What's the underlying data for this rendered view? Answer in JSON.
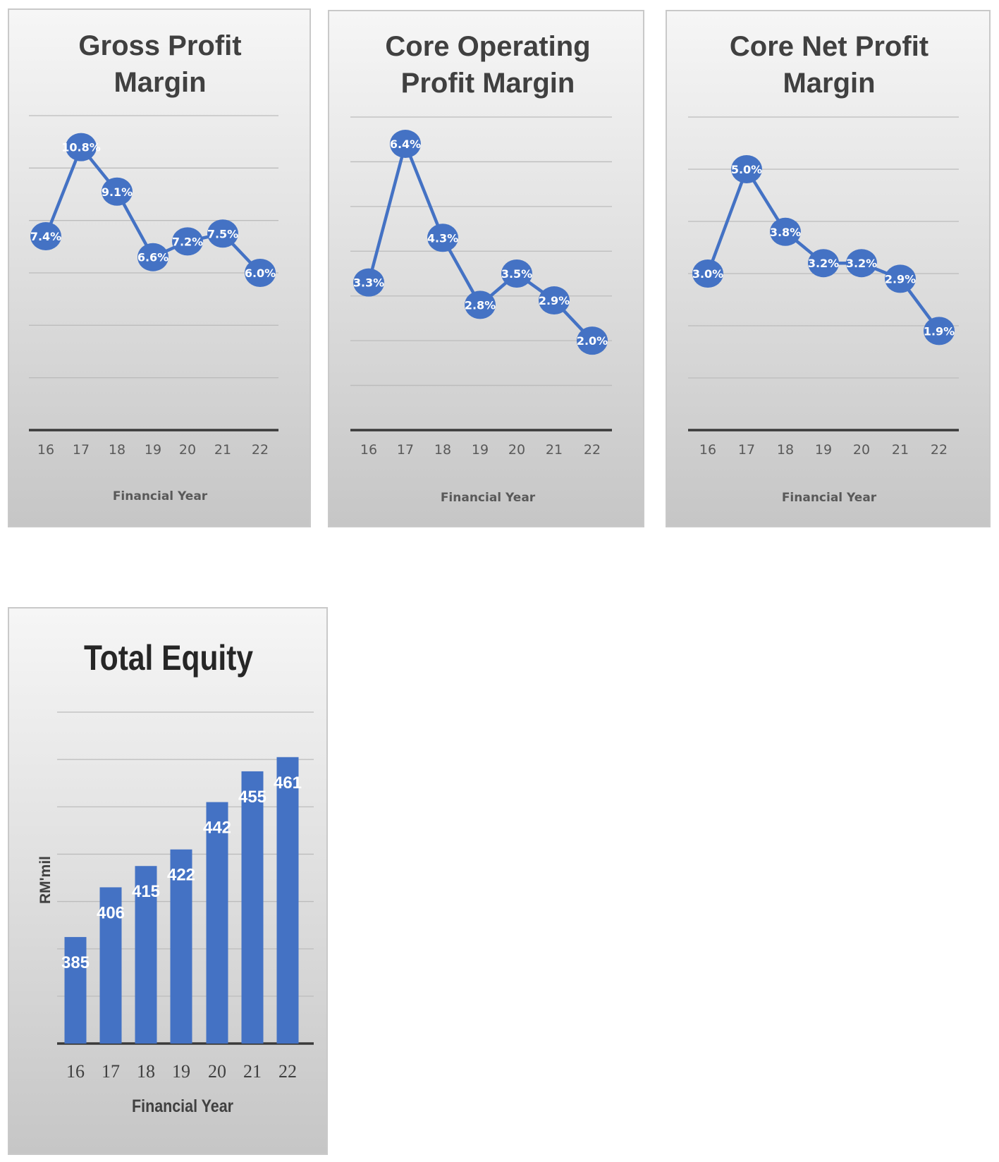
{
  "chart_data": [
    {
      "type": "line",
      "title_lines": [
        "Gross Profit",
        "Margin"
      ],
      "xlabel": "Financial Year",
      "categories": [
        "16",
        "17",
        "18",
        "19",
        "20",
        "21",
        "22"
      ],
      "values": [
        7.4,
        10.8,
        9.1,
        6.6,
        7.2,
        7.5,
        6.0
      ],
      "labels": [
        "7.4%",
        "10.8%",
        "9.1%",
        "6.6%",
        "7.2%",
        "7.5%",
        "6.0%"
      ],
      "ylim": [
        0,
        12
      ],
      "color": "#4472c4",
      "grid": true
    },
    {
      "type": "line",
      "title_lines": [
        "Core Operating",
        "Profit Margin"
      ],
      "xlabel": "Financial Year",
      "categories": [
        "16",
        "17",
        "18",
        "19",
        "20",
        "21",
        "22"
      ],
      "values": [
        3.3,
        6.4,
        4.3,
        2.8,
        3.5,
        2.9,
        2.0
      ],
      "labels": [
        "3.3%",
        "6.4%",
        "4.3%",
        "2.8%",
        "3.5%",
        "2.9%",
        "2.0%"
      ],
      "ylim": [
        0,
        7
      ],
      "color": "#4472c4",
      "grid": true
    },
    {
      "type": "line",
      "title_lines": [
        "Core Net Profit",
        "Margin"
      ],
      "xlabel": "Financial Year",
      "categories": [
        "16",
        "17",
        "18",
        "19",
        "20",
        "21",
        "22"
      ],
      "values": [
        3.0,
        5.0,
        3.8,
        3.2,
        3.2,
        2.9,
        1.9
      ],
      "labels": [
        "3.0%",
        "5.0%",
        "3.8%",
        "3.2%",
        "3.2%",
        "2.9%",
        "1.9%"
      ],
      "ylim": [
        0,
        6
      ],
      "color": "#4472c4",
      "grid": true
    },
    {
      "type": "bar",
      "title_lines": [
        "Total Equity"
      ],
      "xlabel": "Financial Year",
      "ylabel": "RM'mil",
      "categories": [
        "16",
        "17",
        "18",
        "19",
        "20",
        "21",
        "22"
      ],
      "values": [
        385,
        406,
        415,
        422,
        442,
        455,
        461
      ],
      "labels": [
        "385",
        "406",
        "415",
        "422",
        "442",
        "455",
        "461"
      ],
      "ylim": [
        340,
        480
      ],
      "color": "#4472c4",
      "grid": true
    }
  ]
}
